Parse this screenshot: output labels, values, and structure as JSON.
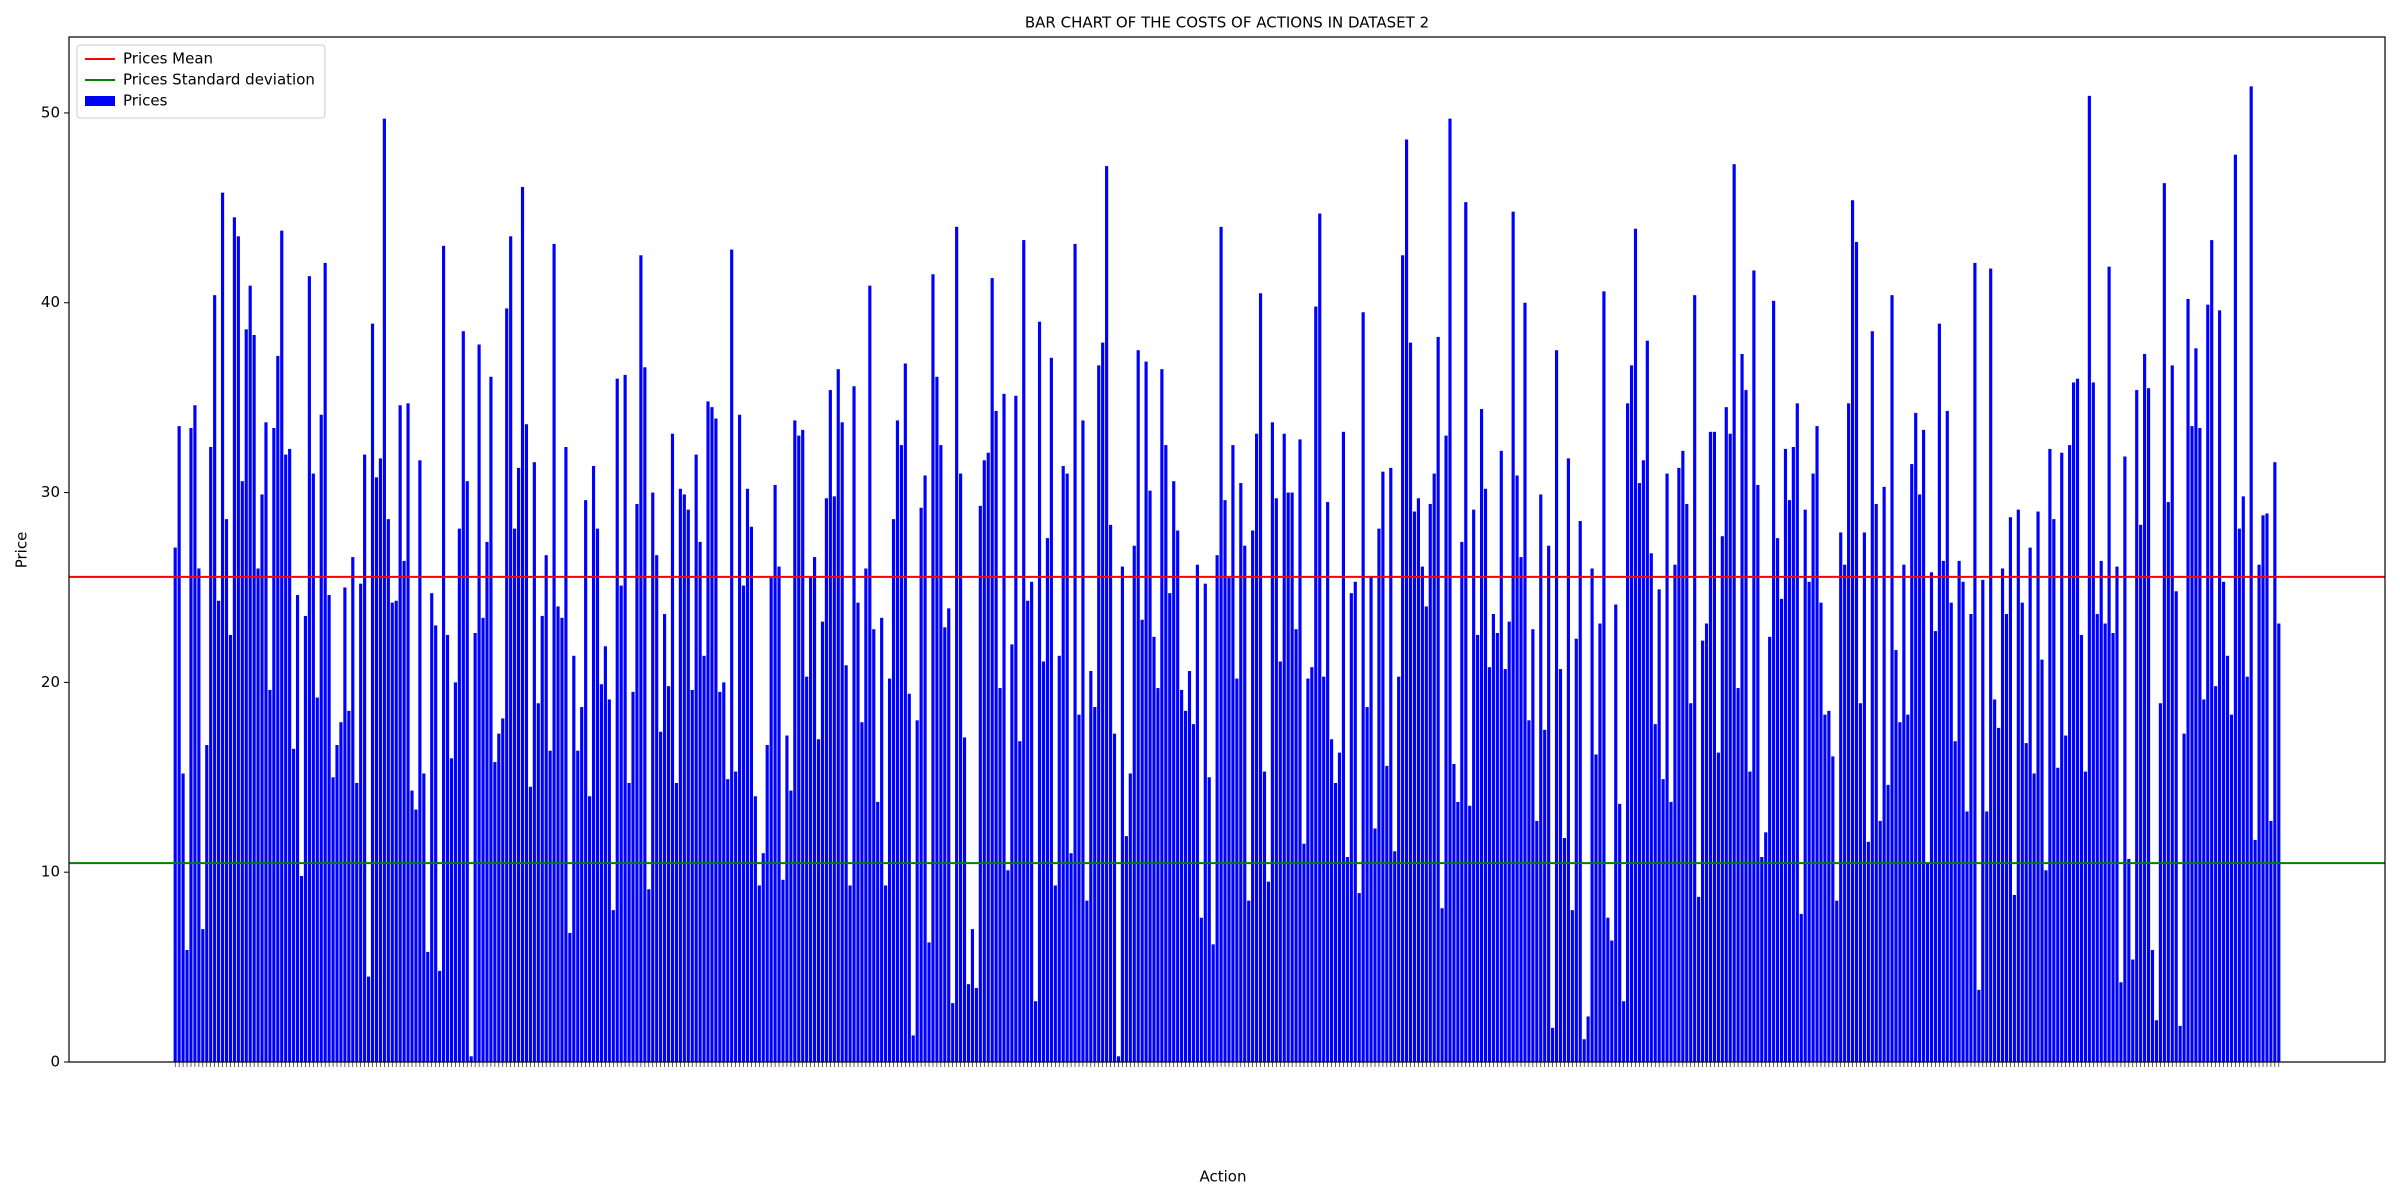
{
  "chart_data": {
    "type": "bar",
    "title": "BAR CHART OF THE COSTS OF ACTIONS IN DATASET 2",
    "x_label": "Action",
    "y_label": "Price",
    "ylim": [
      0,
      54
    ],
    "yticks": [
      0,
      10,
      20,
      30,
      40,
      50
    ],
    "legend": "upper left",
    "hlines": [
      {
        "name": "Prices Mean",
        "color": "#ff0000",
        "value": 25.56
      },
      {
        "name": "Prices Standard deviation",
        "color": "#008000",
        "value": 10.48
      }
    ],
    "series": [
      {
        "name": "Prices",
        "color": "#0000ff",
        "values": [
          27.1,
          33.5,
          15.2,
          5.9,
          33.4,
          34.6,
          26,
          7,
          16.7,
          32.4,
          40.4,
          24.3,
          45.8,
          28.6,
          22.5,
          44.5,
          43.5,
          30.6,
          38.6,
          40.9,
          38.3,
          26,
          29.9,
          33.7,
          19.6,
          33.4,
          37.2,
          43.8,
          32,
          32.3,
          16.5,
          24.6,
          9.8,
          23.5,
          41.4,
          31,
          19.2,
          34.1,
          42.1,
          24.6,
          15,
          16.7,
          17.9,
          25,
          18.5,
          26.6,
          14.7,
          25.2,
          32,
          4.5,
          38.9,
          30.8,
          31.8,
          49.7,
          28.6,
          24.2,
          24.3,
          34.6,
          26.4,
          34.7,
          14.3,
          13.3,
          31.7,
          15.2,
          5.8,
          24.7,
          23,
          4.8,
          43,
          22.5,
          16,
          20,
          28.1,
          38.5,
          30.6,
          0.3,
          22.6,
          37.8,
          23.4,
          27.4,
          36.1,
          15.8,
          17.3,
          18.1,
          39.7,
          43.5,
          28.1,
          31.3,
          46.1,
          33.6,
          14.5,
          31.6,
          18.9,
          23.5,
          26.7,
          16.4,
          43.1,
          24,
          23.4,
          32.4,
          6.8,
          21.4,
          16.4,
          18.7,
          29.6,
          14,
          31.4,
          28.1,
          19.9,
          21.9,
          19.1,
          8,
          36,
          25.1,
          36.2,
          14.7,
          19.5,
          29.4,
          42.5,
          36.6,
          9.1,
          30,
          26.7,
          17.4,
          23.6,
          19.8,
          33.1,
          14.7,
          30.2,
          29.9,
          29.1,
          19.6,
          32,
          27.4,
          21.4,
          34.8,
          34.5,
          33.9,
          19.5,
          20,
          14.9,
          42.8,
          15.3,
          34.1,
          25.1,
          30.2,
          28.2,
          14,
          9.3,
          11,
          16.7,
          25.5,
          30.4,
          26.1,
          9.6,
          17.2,
          14.3,
          33.8,
          33,
          33.3,
          20.3,
          25.6,
          26.6,
          17,
          23.2,
          29.7,
          35.4,
          29.8,
          36.5,
          33.7,
          20.9,
          9.3,
          35.6,
          24.2,
          17.9,
          26,
          40.9,
          22.8,
          13.7,
          23.4,
          9.3,
          20.2,
          28.6,
          33.8,
          32.5,
          36.8,
          19.4,
          1.4,
          18,
          29.2,
          30.9,
          6.3,
          41.5,
          36.1,
          32.5,
          22.9,
          23.9,
          3.1,
          44,
          31,
          17.1,
          4.1,
          7,
          3.9,
          29.3,
          31.7,
          32.1,
          41.3,
          34.3,
          19.7,
          35.2,
          10.1,
          22,
          35.1,
          16.9,
          43.3,
          24.3,
          25.3,
          3.2,
          39,
          21.1,
          27.6,
          37.1,
          9.3,
          21.4,
          31.4,
          31,
          11,
          43.1,
          18.3,
          33.8,
          8.5,
          20.6,
          18.7,
          36.7,
          37.9,
          47.2,
          28.3,
          17.3,
          0.3,
          26.1,
          11.9,
          15.2,
          27.2,
          37.5,
          23.3,
          36.9,
          30.1,
          22.4,
          19.7,
          36.5,
          32.5,
          24.7,
          30.6,
          28,
          19.6,
          18.5,
          20.6,
          17.8,
          26.2,
          7.6,
          25.2,
          15,
          6.2,
          26.7,
          44,
          29.6,
          25.5,
          32.5,
          20.2,
          30.5,
          27.2,
          8.5,
          28,
          33.1,
          40.5,
          15.3,
          9.5,
          33.7,
          29.7,
          21.1,
          33.1,
          30,
          30,
          22.8,
          32.8,
          11.5,
          20.2,
          20.8,
          39.8,
          44.7,
          20.3,
          29.5,
          17,
          14.7,
          16.3,
          33.2,
          10.8,
          24.7,
          25.3,
          8.9,
          39.5,
          18.7,
          25.6,
          12.3,
          28.1,
          31.1,
          15.6,
          31.3,
          11.1,
          20.3,
          42.5,
          48.6,
          37.9,
          29,
          29.7,
          26.1,
          24,
          29.4,
          31,
          38.2,
          8.1,
          33,
          49.7,
          15.7,
          13.7,
          27.4,
          45.3,
          13.5,
          29.1,
          22.5,
          34.4,
          30.2,
          20.8,
          23.6,
          22.6,
          32.2,
          20.7,
          23.2,
          44.8,
          30.9,
          26.6,
          40,
          18,
          22.8,
          12.7,
          29.9,
          17.5,
          27.2,
          1.8,
          37.5,
          20.7,
          11.8,
          31.8,
          8,
          22.3,
          28.5,
          1.2,
          2.4,
          26,
          16.2,
          23.1,
          40.6,
          7.6,
          6.4,
          24.1,
          13.6,
          3.2,
          34.7,
          36.7,
          43.9,
          30.5,
          31.7,
          38,
          26.8,
          17.8,
          24.9,
          14.9,
          31,
          13.7,
          26.2,
          31.3,
          32.2,
          29.4,
          18.9,
          40.4,
          8.7,
          22.2,
          23.1,
          33.2,
          33.2,
          16.3,
          27.7,
          34.5,
          33.1,
          47.3,
          19.7,
          37.3,
          35.4,
          15.3,
          41.7,
          30.4,
          10.8,
          12.1,
          22.4,
          40.1,
          27.6,
          24.4,
          32.3,
          29.6,
          32.4,
          34.7,
          7.8,
          29.1,
          25.3,
          31,
          33.5,
          24.2,
          18.3,
          18.5,
          16.1,
          8.5,
          27.9,
          26.2,
          34.7,
          45.4,
          43.2,
          18.9,
          27.9,
          11.6,
          38.5,
          29.4,
          12.7,
          30.3,
          14.6,
          40.4,
          21.7,
          17.9,
          26.2,
          18.3,
          31.5,
          34.2,
          29.9,
          33.3,
          10.5,
          25.8,
          22.7,
          38.9,
          26.4,
          34.3,
          24.2,
          16.9,
          26.4,
          25.3,
          13.2,
          23.6,
          42.1,
          3.8,
          25.4,
          13.2,
          41.8,
          19.1,
          17.6,
          26,
          23.6,
          28.7,
          8.8,
          29.1,
          24.2,
          16.8,
          27.1,
          15.2,
          29,
          21.2,
          10.1,
          32.3,
          28.6,
          15.5,
          32.1,
          17.2,
          32.5,
          35.8,
          36,
          22.5,
          15.3,
          50.9,
          35.8,
          23.6,
          26.4,
          23.1,
          41.9,
          22.6,
          26.1,
          4.2,
          31.9,
          10.7,
          5.4,
          35.4,
          28.3,
          37.3,
          35.5,
          5.9,
          2.2,
          18.9,
          46.3,
          29.5,
          36.7,
          24.8,
          1.9,
          17.3,
          40.2,
          33.5,
          37.6,
          33.4,
          19.1,
          39.9,
          43.3,
          19.8,
          39.6,
          25.3,
          21.4,
          18.3,
          47.8,
          28.1,
          29.8,
          20.3,
          51.4,
          11.7,
          26.2,
          28.8,
          28.9,
          12.7,
          31.6,
          23.1
        ]
      }
    ]
  }
}
